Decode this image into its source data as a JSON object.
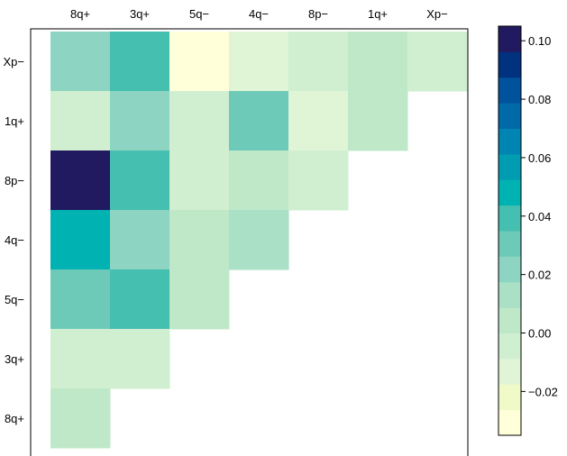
{
  "chart_data": {
    "type": "heatmap",
    "title": "",
    "xlabel": "",
    "ylabel": "",
    "x_categories": [
      "8q+",
      "3q+",
      "5q−",
      "4q−",
      "8p−",
      "1q+",
      "Xp−"
    ],
    "y_categories": [
      "Xp−",
      "1q+",
      "8p−",
      "4q−",
      "5q−",
      "3q+",
      "8q+"
    ],
    "values": [
      [
        0.022,
        0.042,
        -0.034,
        -0.01,
        -0.004,
        0.003,
        -0.006
      ],
      [
        -0.008,
        0.02,
        -0.006,
        0.032,
        -0.014,
        0.003,
        null
      ],
      [
        0.1,
        0.042,
        -0.006,
        0.002,
        -0.006,
        null,
        null
      ],
      [
        0.052,
        0.022,
        0.003,
        0.012,
        null,
        null,
        null
      ],
      [
        0.03,
        0.042,
        0.003,
        null,
        null,
        null,
        null
      ],
      [
        -0.008,
        -0.008,
        null,
        null,
        null,
        null,
        null
      ],
      [
        0.003,
        null,
        null,
        null,
        null,
        null,
        null
      ]
    ],
    "colorbar": {
      "ticks": [
        "0.10",
        "0.08",
        "0.06",
        "0.04",
        "0.02",
        "0.00",
        "−0.02"
      ],
      "tick_values": [
        0.1,
        0.08,
        0.06,
        0.04,
        0.02,
        0.0,
        -0.02
      ],
      "range": [
        -0.035,
        0.105
      ],
      "bins": 14,
      "colors": [
        "#ffffd9",
        "#f0f9c8",
        "#e0f5d6",
        "#d0efd0",
        "#bfe8c9",
        "#a9e0c6",
        "#8dd5c2",
        "#6dcab8",
        "#45bfb0",
        "#00b2b2",
        "#009cb2",
        "#0084b2",
        "#006aa8",
        "#00529c",
        "#003280",
        "#221a60"
      ]
    },
    "legend": "right"
  }
}
